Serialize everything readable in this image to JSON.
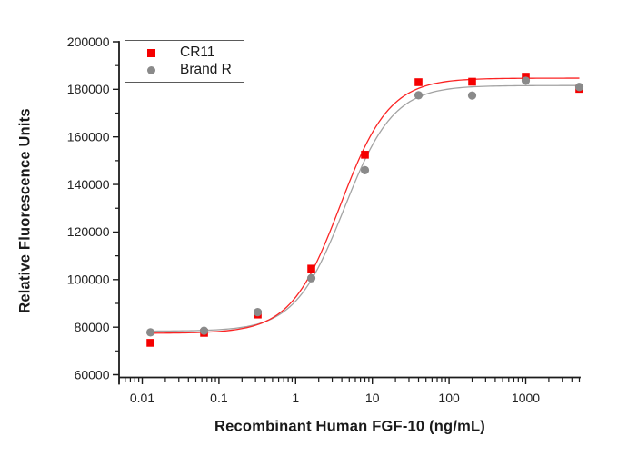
{
  "chart_data": {
    "type": "scatter",
    "title": "",
    "xlabel": "Recombinant Human FGF-10 (ng/mL)",
    "ylabel": "Relative Fluorescence Units",
    "x_scale": "log",
    "grid": false,
    "legend_position": "top-left-inside",
    "x_range": [
      0.005,
      5100
    ],
    "y_range": [
      60000,
      200000
    ],
    "x_major_ticks": [
      0.01,
      0.1,
      1,
      10,
      100,
      1000
    ],
    "x_tick_labels": [
      "0.01",
      "0.1",
      "1",
      "10",
      "100",
      "1000"
    ],
    "y_major_ticks": [
      60000,
      80000,
      100000,
      120000,
      140000,
      160000,
      180000,
      200000
    ],
    "y_tick_labels": [
      "60000",
      "80000",
      "100000",
      "120000",
      "140000",
      "160000",
      "180000",
      "200000"
    ],
    "y_minor_ticks": [
      70000,
      90000,
      110000,
      130000,
      150000,
      170000,
      190000
    ],
    "x": [
      0.0128,
      0.064,
      0.32,
      1.6,
      8,
      40,
      200,
      1000,
      5000
    ],
    "series": [
      {
        "name": "CR11",
        "marker": "square",
        "color": "#f50000",
        "curve_color": "#fb2424",
        "values": [
          73400,
          77600,
          85300,
          104600,
          152500,
          183000,
          183200,
          185300,
          180200
        ],
        "fit_4pl": {
          "bottom": 77400,
          "top": 184700,
          "ec50": 3.8,
          "hill": 1.35
        }
      },
      {
        "name": "Brand R",
        "marker": "circle",
        "color": "#8a8a8a",
        "curve_color": "#a3a3a3",
        "values": [
          77800,
          78500,
          86300,
          100600,
          146000,
          177500,
          177400,
          183600,
          181000
        ],
        "fit_4pl": {
          "bottom": 78300,
          "top": 181600,
          "ec50": 4.3,
          "hill": 1.35
        }
      }
    ],
    "colors": {
      "axis": "#1c1c1c",
      "text": "#222222"
    }
  }
}
